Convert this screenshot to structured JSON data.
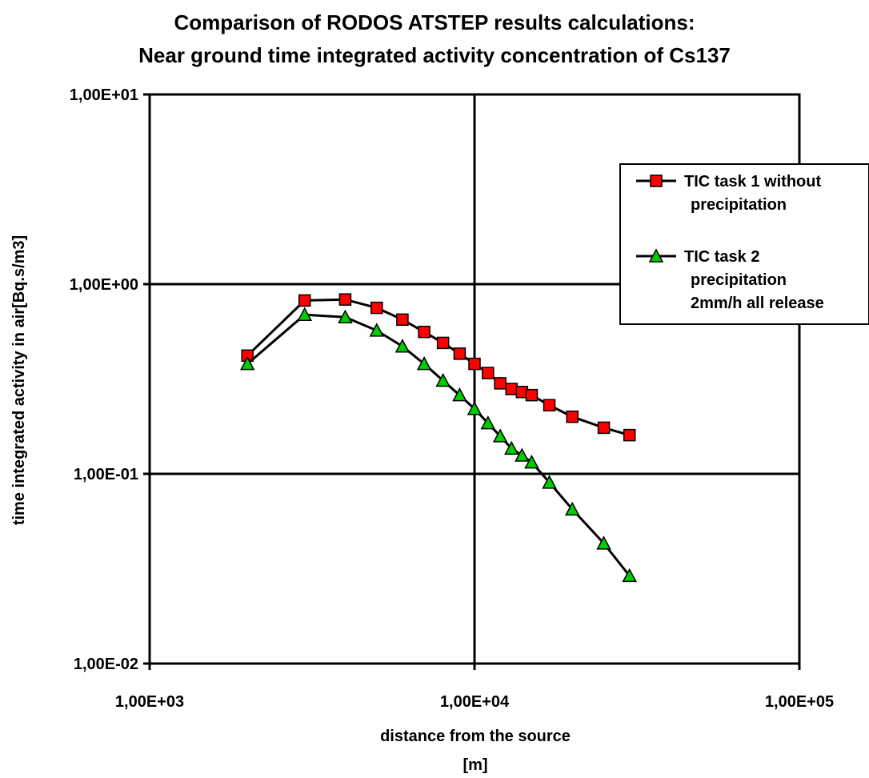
{
  "chart_data": {
    "type": "line",
    "title_line1": "Comparison of RODOS ATSTEP results calculations:",
    "title_line2": "Near ground time integrated activity concentration of Cs137",
    "xlabel_line1": "distance from the source",
    "xlabel_line2": "[m]",
    "ylabel": "time integrated activity in air[Bq.s/m3]",
    "x_scale": "log",
    "y_scale": "log",
    "xlim": [
      1000,
      100000
    ],
    "ylim": [
      0.01,
      10
    ],
    "x_ticks": [
      1000,
      10000,
      100000
    ],
    "x_tick_labels": [
      "1,00E+03",
      "1,00E+04",
      "1,00E+05"
    ],
    "y_ticks": [
      10,
      1,
      0.1,
      0.01
    ],
    "y_tick_labels": [
      "1,00E+01",
      "1,00E+00",
      "1,00E-01",
      "1,00E-02"
    ],
    "grid": "major",
    "legend_position": "right",
    "series": [
      {
        "name_lines": [
          "TIC task 1 without",
          "precipitation"
        ],
        "marker": "square",
        "color": "#ff0000",
        "x": [
          2000,
          3000,
          4000,
          5000,
          6000,
          7000,
          8000,
          9000,
          10000,
          11000,
          12000,
          13000,
          14000,
          15000,
          17000,
          20000,
          25000,
          30000
        ],
        "y": [
          0.42,
          0.82,
          0.83,
          0.75,
          0.65,
          0.56,
          0.49,
          0.43,
          0.38,
          0.34,
          0.3,
          0.28,
          0.27,
          0.26,
          0.23,
          0.2,
          0.175,
          0.16
        ]
      },
      {
        "name_lines": [
          "TIC task 2",
          "precipitation",
          "2mm/h all release"
        ],
        "marker": "triangle",
        "color": "#00cc00",
        "x": [
          2000,
          3000,
          4000,
          5000,
          6000,
          7000,
          8000,
          9000,
          10000,
          11000,
          12000,
          13000,
          14000,
          15000,
          17000,
          20000,
          25000,
          30000
        ],
        "y": [
          0.38,
          0.69,
          0.67,
          0.57,
          0.47,
          0.38,
          0.31,
          0.26,
          0.22,
          0.185,
          0.158,
          0.136,
          0.125,
          0.115,
          0.09,
          0.065,
          0.043,
          0.029
        ]
      }
    ]
  }
}
